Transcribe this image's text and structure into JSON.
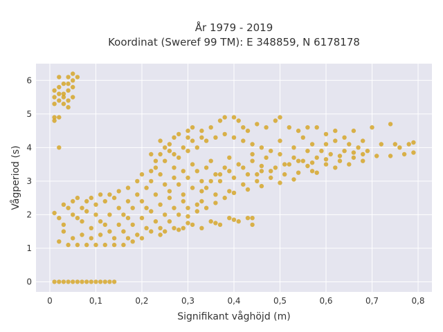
{
  "chart_data": {
    "type": "scatter",
    "title_line1": "År 1979 - 2019",
    "title_line2": "Koordinat (Sweref 99 TM): E 348859, N 6178178",
    "xlabel": "Signifikant våghöjd (m)",
    "ylabel": "Vågperiod (s)",
    "xlim": [
      -0.03,
      0.83
    ],
    "ylim": [
      -0.3,
      6.5
    ],
    "x_ticks": [
      0,
      0.1,
      0.2,
      0.3,
      0.4,
      0.5,
      0.6,
      0.7,
      0.8
    ],
    "x_tick_labels": [
      "0",
      "0,1",
      "0,2",
      "0,3",
      "0,4",
      "0,5",
      "0,6",
      "0,7",
      "0,8"
    ],
    "y_ticks": [
      0,
      1,
      2,
      3,
      4,
      5,
      6
    ],
    "y_tick_labels": [
      "0",
      "1",
      "2",
      "3",
      "4",
      "5",
      "6"
    ],
    "grid": true,
    "colors": {
      "marker": "#d4a21e",
      "plot_bg": "#e5e5ef",
      "grid": "#ffffff"
    },
    "points": [
      [
        0.01,
        0
      ],
      [
        0.02,
        0
      ],
      [
        0.03,
        0
      ],
      [
        0.04,
        0
      ],
      [
        0.05,
        0
      ],
      [
        0.06,
        0
      ],
      [
        0.07,
        0
      ],
      [
        0.08,
        0
      ],
      [
        0.09,
        0
      ],
      [
        0.1,
        0
      ],
      [
        0.11,
        0
      ],
      [
        0.12,
        0
      ],
      [
        0.13,
        0
      ],
      [
        0.14,
        0
      ],
      [
        0.01,
        4.8
      ],
      [
        0.01,
        4.9
      ],
      [
        0.02,
        4.9
      ],
      [
        0.01,
        5.3
      ],
      [
        0.02,
        5.4
      ],
      [
        0.01,
        5.5
      ],
      [
        0.02,
        5.6
      ],
      [
        0.01,
        5.7
      ],
      [
        0.02,
        5.8
      ],
      [
        0.03,
        5.5
      ],
      [
        0.03,
        5.6
      ],
      [
        0.04,
        5.4
      ],
      [
        0.04,
        5.7
      ],
      [
        0.04,
        5.9
      ],
      [
        0.04,
        6.1
      ],
      [
        0.05,
        6.2
      ],
      [
        0.05,
        6.0
      ],
      [
        0.05,
        5.8
      ],
      [
        0.03,
        5.3
      ],
      [
        0.02,
        6.1
      ],
      [
        0.06,
        6.1
      ],
      [
        0.04,
        5.2
      ],
      [
        0.03,
        5.9
      ],
      [
        0.05,
        5.5
      ],
      [
        0.02,
        4.0
      ],
      [
        0.01,
        2.05
      ],
      [
        0.02,
        1.9
      ],
      [
        0.03,
        2.3
      ],
      [
        0.05,
        2.4
      ],
      [
        0.07,
        2.2
      ],
      [
        0.09,
        2.5
      ],
      [
        0.11,
        2.6
      ],
      [
        0.13,
        2.6
      ],
      [
        0.15,
        2.7
      ],
      [
        0.17,
        2.8
      ],
      [
        0.19,
        3.0
      ],
      [
        0.2,
        3.2
      ],
      [
        0.22,
        3.3
      ],
      [
        0.23,
        3.6
      ],
      [
        0.24,
        3.8
      ],
      [
        0.25,
        4.0
      ],
      [
        0.26,
        4.1
      ],
      [
        0.27,
        4.3
      ],
      [
        0.28,
        4.4
      ],
      [
        0.3,
        4.5
      ],
      [
        0.31,
        4.6
      ],
      [
        0.33,
        4.5
      ],
      [
        0.35,
        4.6
      ],
      [
        0.37,
        4.8
      ],
      [
        0.38,
        4.9
      ],
      [
        0.4,
        4.9
      ],
      [
        0.41,
        4.8
      ],
      [
        0.42,
        4.6
      ],
      [
        0.43,
        4.5
      ],
      [
        0.45,
        4.7
      ],
      [
        0.47,
        4.6
      ],
      [
        0.49,
        4.8
      ],
      [
        0.5,
        4.9
      ],
      [
        0.52,
        4.6
      ],
      [
        0.54,
        4.5
      ],
      [
        0.56,
        4.6
      ],
      [
        0.58,
        4.6
      ],
      [
        0.6,
        4.4
      ],
      [
        0.62,
        4.5
      ],
      [
        0.64,
        4.3
      ],
      [
        0.66,
        4.5
      ],
      [
        0.68,
        4.2
      ],
      [
        0.7,
        4.6
      ],
      [
        0.72,
        4.1
      ],
      [
        0.74,
        4.7
      ],
      [
        0.75,
        4.1
      ],
      [
        0.76,
        4.0
      ],
      [
        0.78,
        4.1
      ],
      [
        0.79,
        4.15
      ],
      [
        0.79,
        3.85
      ],
      [
        0.77,
        3.8
      ],
      [
        0.74,
        3.75
      ],
      [
        0.71,
        3.75
      ],
      [
        0.68,
        3.8
      ],
      [
        0.66,
        3.7
      ],
      [
        0.63,
        3.6
      ],
      [
        0.6,
        3.5
      ],
      [
        0.57,
        3.3
      ],
      [
        0.54,
        3.25
      ],
      [
        0.51,
        3.2
      ],
      [
        0.48,
        3.1
      ],
      [
        0.45,
        3.0
      ],
      [
        0.42,
        2.9
      ],
      [
        0.39,
        2.7
      ],
      [
        0.36,
        2.6
      ],
      [
        0.33,
        2.4
      ],
      [
        0.3,
        2.2
      ],
      [
        0.28,
        2.0
      ],
      [
        0.26,
        1.8
      ],
      [
        0.24,
        1.6
      ],
      [
        0.22,
        1.5
      ],
      [
        0.2,
        1.3
      ],
      [
        0.18,
        1.2
      ],
      [
        0.16,
        1.1
      ],
      [
        0.14,
        1.1
      ],
      [
        0.12,
        1.1
      ],
      [
        0.1,
        1.1
      ],
      [
        0.08,
        1.1
      ],
      [
        0.06,
        1.1
      ],
      [
        0.04,
        1.1
      ],
      [
        0.02,
        1.2
      ],
      [
        0.25,
        1.5
      ],
      [
        0.27,
        1.6
      ],
      [
        0.29,
        1.6
      ],
      [
        0.31,
        1.7
      ],
      [
        0.33,
        1.6
      ],
      [
        0.35,
        1.8
      ],
      [
        0.37,
        1.7
      ],
      [
        0.39,
        1.9
      ],
      [
        0.41,
        1.8
      ],
      [
        0.43,
        1.9
      ],
      [
        0.44,
        1.7
      ],
      [
        0.44,
        1.9
      ],
      [
        0.24,
        1.4
      ],
      [
        0.3,
        1.75
      ],
      [
        0.36,
        1.75
      ],
      [
        0.4,
        1.85
      ],
      [
        0.28,
        1.55
      ],
      [
        0.26,
        2.5
      ],
      [
        0.29,
        2.4
      ],
      [
        0.32,
        2.3
      ],
      [
        0.34,
        2.8
      ],
      [
        0.37,
        3.0
      ],
      [
        0.4,
        3.1
      ],
      [
        0.43,
        3.2
      ],
      [
        0.46,
        3.3
      ],
      [
        0.49,
        3.4
      ],
      [
        0.52,
        3.5
      ],
      [
        0.55,
        3.6
      ],
      [
        0.58,
        3.7
      ],
      [
        0.61,
        3.8
      ],
      [
        0.64,
        3.9
      ],
      [
        0.67,
        4.0
      ],
      [
        0.62,
        4.2
      ],
      [
        0.57,
        4.1
      ],
      [
        0.53,
        4.0
      ],
      [
        0.48,
        3.9
      ],
      [
        0.44,
        3.8
      ],
      [
        0.39,
        3.7
      ],
      [
        0.35,
        3.6
      ],
      [
        0.31,
        3.5
      ],
      [
        0.27,
        3.4
      ],
      [
        0.24,
        3.2
      ],
      [
        0.22,
        3.0
      ],
      [
        0.21,
        2.8
      ],
      [
        0.19,
        2.6
      ],
      [
        0.17,
        2.4
      ],
      [
        0.15,
        2.2
      ],
      [
        0.13,
        2.0
      ],
      [
        0.11,
        1.8
      ],
      [
        0.09,
        1.6
      ],
      [
        0.07,
        1.4
      ],
      [
        0.05,
        1.3
      ],
      [
        0.03,
        1.5
      ],
      [
        0.03,
        1.7
      ],
      [
        0.06,
        1.9
      ],
      [
        0.08,
        2.1
      ],
      [
        0.1,
        2.3
      ],
      [
        0.12,
        2.4
      ],
      [
        0.14,
        2.5
      ],
      [
        0.16,
        1.5
      ],
      [
        0.18,
        1.7
      ],
      [
        0.2,
        1.9
      ],
      [
        0.22,
        2.1
      ],
      [
        0.24,
        2.3
      ],
      [
        0.26,
        2.7
      ],
      [
        0.28,
        2.9
      ],
      [
        0.3,
        3.1
      ],
      [
        0.32,
        3.3
      ],
      [
        0.34,
        3.4
      ],
      [
        0.36,
        3.2
      ],
      [
        0.38,
        3.4
      ],
      [
        0.41,
        3.5
      ],
      [
        0.44,
        3.6
      ],
      [
        0.47,
        3.7
      ],
      [
        0.5,
        3.8
      ],
      [
        0.53,
        3.7
      ],
      [
        0.56,
        3.9
      ],
      [
        0.59,
        3.9
      ],
      [
        0.62,
        3.4
      ],
      [
        0.65,
        3.5
      ],
      [
        0.68,
        3.6
      ],
      [
        0.56,
        3.45
      ],
      [
        0.46,
        3.45
      ],
      [
        0.33,
        3.0
      ],
      [
        0.29,
        2.6
      ],
      [
        0.23,
        2.6
      ],
      [
        0.21,
        2.2
      ],
      [
        0.17,
        1.9
      ],
      [
        0.15,
        1.7
      ],
      [
        0.13,
        1.5
      ],
      [
        0.11,
        1.4
      ],
      [
        0.09,
        1.3
      ],
      [
        0.07,
        1.8
      ],
      [
        0.05,
        2.0
      ],
      [
        0.04,
        2.2
      ],
      [
        0.06,
        2.5
      ],
      [
        0.08,
        2.4
      ],
      [
        0.1,
        2.0
      ],
      [
        0.12,
        1.7
      ],
      [
        0.14,
        1.3
      ],
      [
        0.16,
        2.0
      ],
      [
        0.18,
        2.2
      ],
      [
        0.2,
        2.4
      ],
      [
        0.25,
        2.9
      ],
      [
        0.27,
        3.1
      ],
      [
        0.29,
        3.3
      ],
      [
        0.31,
        2.8
      ],
      [
        0.33,
        2.7
      ],
      [
        0.35,
        3.0
      ],
      [
        0.37,
        3.2
      ],
      [
        0.39,
        3.3
      ],
      [
        0.42,
        3.4
      ],
      [
        0.45,
        3.2
      ],
      [
        0.48,
        3.3
      ],
      [
        0.51,
        3.5
      ],
      [
        0.54,
        3.6
      ],
      [
        0.57,
        3.55
      ],
      [
        0.6,
        3.65
      ],
      [
        0.63,
        3.75
      ],
      [
        0.66,
        3.85
      ],
      [
        0.69,
        3.9
      ],
      [
        0.58,
        3.25
      ],
      [
        0.53,
        3.05
      ],
      [
        0.5,
        2.95
      ],
      [
        0.46,
        2.85
      ],
      [
        0.43,
        2.75
      ],
      [
        0.4,
        2.65
      ],
      [
        0.38,
        2.5
      ],
      [
        0.36,
        2.35
      ],
      [
        0.34,
        2.2
      ],
      [
        0.32,
        2.1
      ],
      [
        0.3,
        1.95
      ],
      [
        0.27,
        2.2
      ],
      [
        0.25,
        2.0
      ],
      [
        0.23,
        1.8
      ],
      [
        0.21,
        1.6
      ],
      [
        0.19,
        1.4
      ],
      [
        0.17,
        1.3
      ],
      [
        0.26,
        3.9
      ],
      [
        0.28,
        3.7
      ],
      [
        0.3,
        3.9
      ],
      [
        0.32,
        4.0
      ],
      [
        0.34,
        4.2
      ],
      [
        0.36,
        4.3
      ],
      [
        0.38,
        4.4
      ],
      [
        0.4,
        4.3
      ],
      [
        0.42,
        4.2
      ],
      [
        0.44,
        4.1
      ],
      [
        0.46,
        4.0
      ],
      [
        0.5,
        4.2
      ],
      [
        0.55,
        4.3
      ],
      [
        0.6,
        4.1
      ],
      [
        0.65,
        4.1
      ],
      [
        0.25,
        3.6
      ],
      [
        0.27,
        3.8
      ],
      [
        0.29,
        4.0
      ],
      [
        0.31,
        4.2
      ],
      [
        0.33,
        4.3
      ],
      [
        0.3,
        4.3
      ],
      [
        0.24,
        4.2
      ],
      [
        0.22,
        3.8
      ],
      [
        0.23,
        3.4
      ]
    ]
  }
}
